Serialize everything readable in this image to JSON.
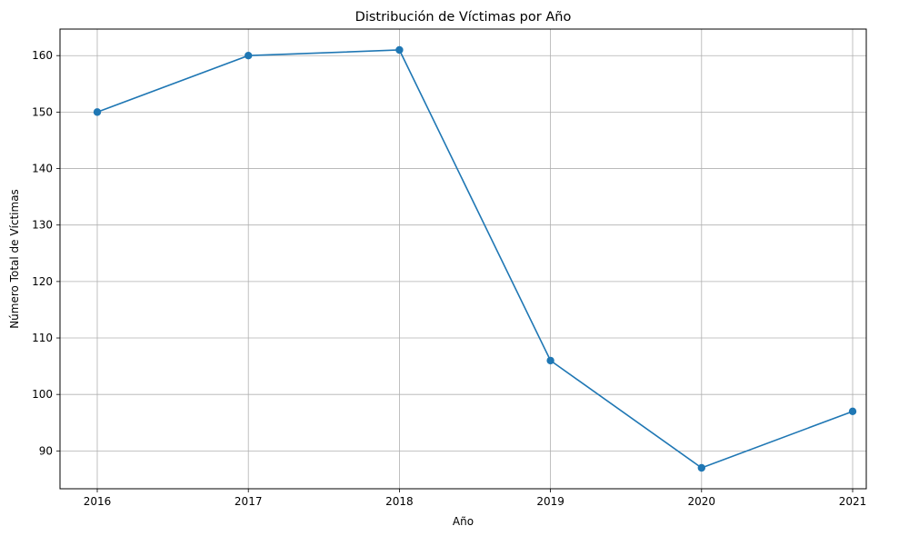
{
  "chart_data": {
    "type": "line",
    "title": "Distribución de Víctimas por Año",
    "xlabel": "Año",
    "ylabel": "Número Total de Víctimas",
    "x": [
      "2016",
      "2017",
      "2018",
      "2019",
      "2020",
      "2021"
    ],
    "series": [
      {
        "values": [
          150,
          160,
          161,
          106,
          87,
          97
        ],
        "color": "#1f77b4",
        "marker": "circle"
      }
    ],
    "yticks": [
      90,
      100,
      110,
      120,
      130,
      140,
      150,
      160
    ],
    "ylim": [
      83.3,
      164.7
    ],
    "grid": true,
    "legend": "none"
  }
}
